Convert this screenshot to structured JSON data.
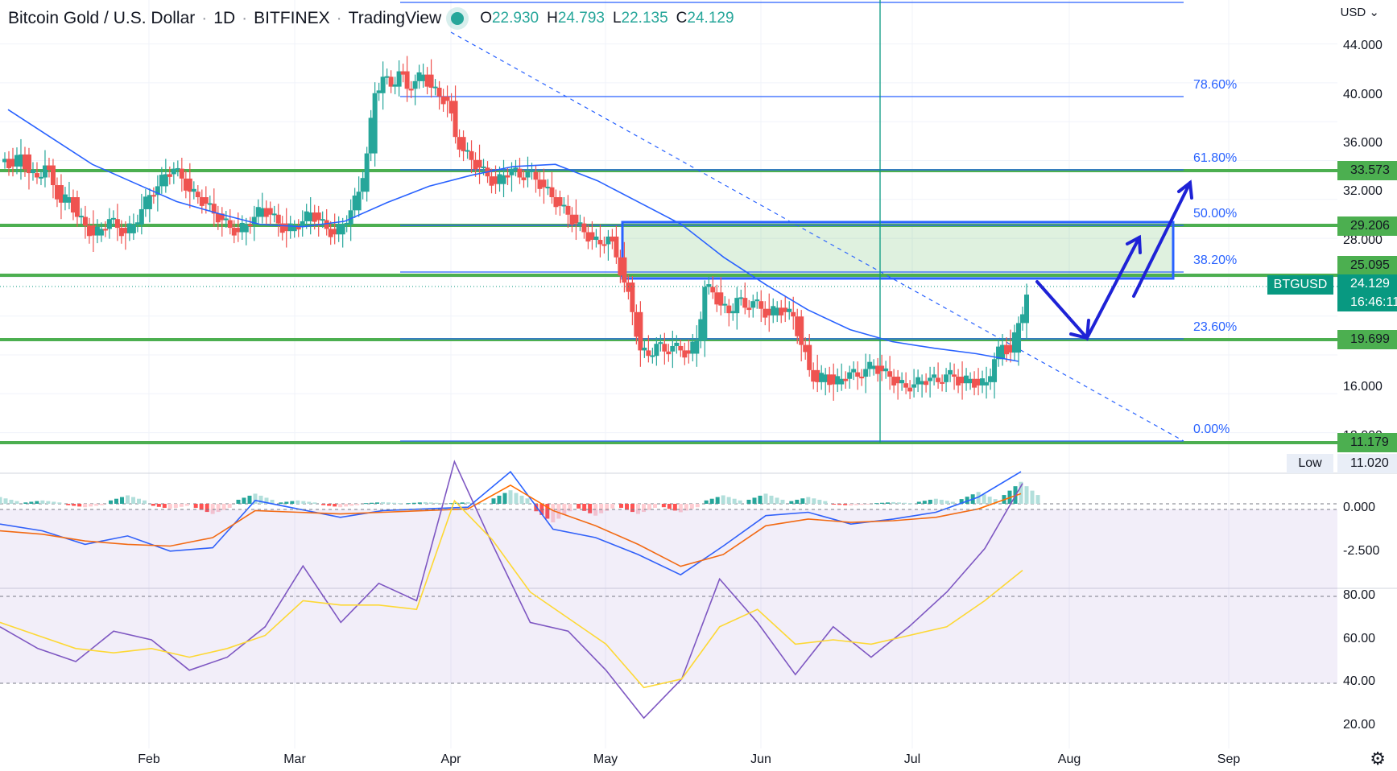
{
  "header": {
    "title": "Bitcoin Gold / U.S. Dollar",
    "interval": "1D",
    "exchange": "BITFINEX",
    "source": "TradingView",
    "open_label": "O",
    "open": "22.930",
    "high_label": "H",
    "high": "24.793",
    "low_label": "L",
    "low": "22.135",
    "close_label": "C",
    "close": "24.129"
  },
  "currency_selector": "USD",
  "settings_icon": "gear-icon",
  "colors": {
    "up": "#26a69a",
    "down": "#ef5350",
    "ma": "#2962ff",
    "level": "#4caf50",
    "fib": "#2962ff",
    "macd": "#2962ff",
    "signal": "#ff6d00",
    "rsi": "#7e57c2",
    "rsi_ma": "#fdd835"
  },
  "price_axis": {
    "ticks": [
      "44.000",
      "40.000",
      "36.000",
      "32.000",
      "28.000",
      "16.000",
      "12.000"
    ],
    "level_tags": [
      "33.573",
      "29.206",
      "25.095",
      "19.699",
      "11.179"
    ],
    "symbol_tag": "BTGUSD",
    "last_price": "24.129",
    "countdown": "16:46:11",
    "low_label": "Low",
    "low_value": "11.020"
  },
  "macd_axis": {
    "ticks": [
      "0.000",
      "-2.500"
    ]
  },
  "rsi_axis": {
    "ticks": [
      "80.00",
      "60.00",
      "40.00",
      "20.00"
    ]
  },
  "time_axis": {
    "labels": [
      "Feb",
      "Mar",
      "Apr",
      "May",
      "Jun",
      "Jul",
      "Aug",
      "Sep"
    ]
  },
  "fib_levels": [
    {
      "pct": "78.60%",
      "price": 39.7
    },
    {
      "pct": "61.80%",
      "price": 34.0
    },
    {
      "pct": "50.00%",
      "price": 29.6
    },
    {
      "pct": "38.20%",
      "price": 25.4
    },
    {
      "pct": "23.60%",
      "price": 19.9
    },
    {
      "pct": "0.00%",
      "price": 11.2
    }
  ],
  "chart_data": [
    {
      "type": "candlestick",
      "title": "Bitcoin Gold / U.S. Dollar",
      "series": [
        {
          "name": "BTGUSD",
          "values": [
            36.5,
            35.8,
            36.9,
            35.2,
            34.8,
            35.9,
            34.1,
            32.5,
            33.0,
            31.2,
            30.4,
            29.5,
            30.1,
            31.0,
            30.2,
            29.7,
            30.5,
            31.9,
            33.2,
            34.0,
            35.1,
            35.6,
            34.7,
            33.5,
            33.0,
            32.4,
            31.5,
            30.9,
            30.2,
            29.8,
            30.5,
            31.2,
            32.0,
            31.4,
            30.6,
            29.9,
            30.3,
            30.8,
            31.6,
            30.9,
            30.1,
            29.6,
            30.5,
            31.8,
            33.5,
            37.0,
            42.5,
            44.0,
            43.1,
            44.5,
            42.9,
            43.6,
            44.2,
            43.0,
            42.2,
            41.8,
            38.5,
            37.2,
            36.4,
            35.7,
            34.9,
            34.2,
            35.0,
            35.6,
            34.8,
            35.3,
            34.6,
            33.9,
            33.0,
            32.2,
            31.4,
            30.6,
            29.8,
            29.1,
            28.7,
            29.4,
            27.5,
            25.2,
            22.5,
            19.0,
            18.5,
            19.6,
            18.9,
            19.4,
            19.0,
            18.7,
            19.9,
            24.8,
            24.3,
            23.1,
            22.4,
            23.8,
            22.9,
            23.5,
            22.8,
            22.2,
            22.9,
            22.5,
            22.1,
            19.5,
            17.2,
            16.1,
            16.8,
            15.9,
            16.4,
            17.0,
            16.6,
            17.3,
            17.6,
            17.1,
            16.6,
            16.0,
            15.6,
            15.9,
            16.2,
            16.5,
            16.1,
            16.8,
            16.6,
            16.0,
            16.4,
            15.8,
            16.1,
            18.2,
            19.5,
            18.8,
            21.5,
            24.1
          ]
        },
        {
          "name": "MA",
          "values": [
            41.0,
            38.5,
            36.0,
            34.3,
            32.6,
            31.5,
            30.5,
            30.3,
            30.8,
            32.5,
            34.0,
            35.0,
            35.8,
            36.0,
            34.5,
            32.5,
            30.5,
            27.5,
            25.0,
            22.7,
            20.9,
            19.8,
            19.2,
            18.7,
            18.0
          ]
        }
      ]
    },
    {
      "type": "line",
      "series": [
        {
          "name": "MACD",
          "values": [
            -1.2,
            -1.6,
            -2.4,
            -1.9,
            -2.8,
            -2.6,
            0.2,
            -0.3,
            -0.8,
            -0.4,
            -0.3,
            -0.2,
            1.9,
            -1.5,
            -2.0,
            -3.0,
            -4.2,
            -2.5,
            -0.7,
            -0.5,
            -1.2,
            -0.9,
            -0.5,
            0.4,
            1.9
          ]
        },
        {
          "name": "Signal",
          "values": [
            -1.6,
            -1.8,
            -2.2,
            -2.4,
            -2.5,
            -2.0,
            -0.4,
            -0.5,
            -0.6,
            -0.5,
            -0.4,
            -0.3,
            1.1,
            -0.4,
            -1.3,
            -2.4,
            -3.7,
            -3.0,
            -1.3,
            -0.9,
            -1.1,
            -1.0,
            -0.8,
            -0.3,
            0.6
          ]
        }
      ]
    },
    {
      "type": "line",
      "series": [
        {
          "name": "RSI",
          "values": [
            43,
            38,
            35,
            42,
            40,
            33,
            36,
            43,
            57,
            44,
            53,
            49,
            81,
            62,
            44,
            42,
            33,
            22,
            31,
            54,
            44,
            32,
            43,
            36,
            43,
            51,
            61,
            76
          ]
        },
        {
          "name": "RSI MA",
          "values": [
            44,
            41,
            38,
            37,
            38,
            36,
            38,
            41,
            49,
            48,
            48,
            47,
            72,
            63,
            51,
            45,
            39,
            29,
            31,
            43,
            47,
            39,
            40,
            39,
            41,
            43,
            49,
            56
          ]
        }
      ]
    }
  ]
}
